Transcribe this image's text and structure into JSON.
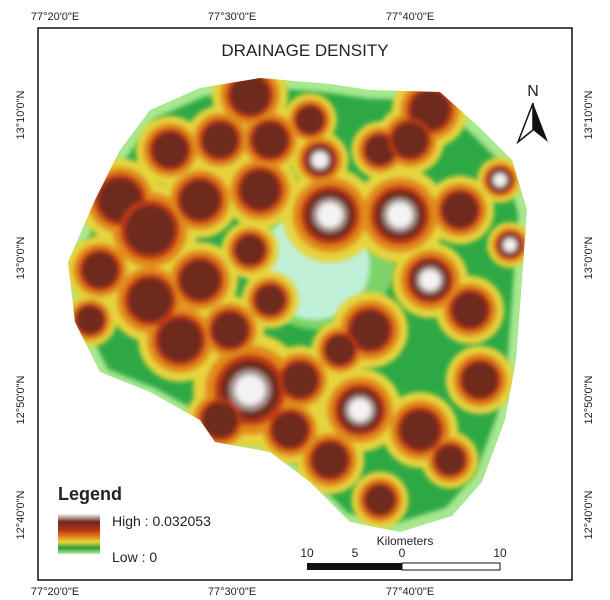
{
  "title": "DRAINAGE DENSITY",
  "north_arrow": "N",
  "legend": {
    "title": "Legend",
    "high": "High : 0.032053",
    "low": "Low : 0"
  },
  "scale_bar": {
    "unit": "Kilometers",
    "labels": [
      "10",
      "5",
      "0",
      "10"
    ]
  },
  "coordinates": {
    "top": [
      "77°20'0\"E",
      "77°30'0\"E",
      "77°40'0\"E"
    ],
    "bottom": [
      "77°20'0\"E",
      "77°30'0\"E",
      "77°40'0\"E"
    ],
    "left": [
      "13°10'0\"N",
      "13°0'0\"N",
      "12°50'0\"N",
      "12°40'0\"N"
    ],
    "right": [
      "13°10'0\"N",
      "13°0'0\"N",
      "12°50'0\"N",
      "12°40'0\"N"
    ]
  }
}
